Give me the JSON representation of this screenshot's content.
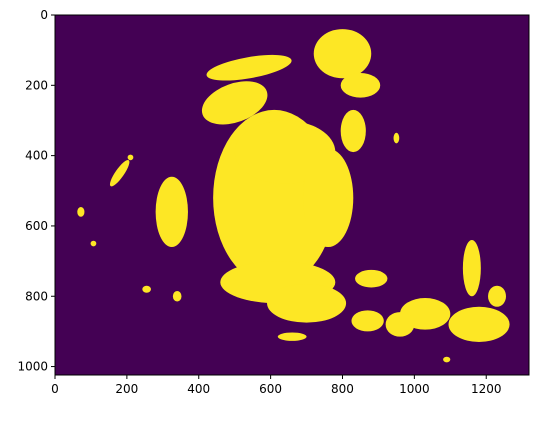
{
  "chart_data": {
    "type": "heatmap",
    "title": "",
    "xlabel": "",
    "ylabel": "",
    "xlim": [
      0,
      1319
    ],
    "ylim": [
      1024,
      0
    ],
    "xticks": [
      0,
      200,
      400,
      600,
      800,
      1000,
      1200
    ],
    "yticks": [
      0,
      200,
      400,
      600,
      800,
      1000
    ],
    "grid": false,
    "colormap": "viridis",
    "colors": {
      "background": "#440154",
      "foreground": "#fde725"
    },
    "mask_regions": [
      {
        "name": "face-mass",
        "cx": 610,
        "cy": 520,
        "rx": 170,
        "ry": 250,
        "rot": 0
      },
      {
        "name": "face-upper",
        "cx": 640,
        "cy": 390,
        "rx": 140,
        "ry": 90,
        "rot": 0
      },
      {
        "name": "face-right",
        "cx": 760,
        "cy": 520,
        "rx": 70,
        "ry": 140,
        "rot": 0
      },
      {
        "name": "jaw",
        "cx": 620,
        "cy": 760,
        "rx": 160,
        "ry": 60,
        "rot": 0
      },
      {
        "name": "jaw-lower",
        "cx": 700,
        "cy": 820,
        "rx": 110,
        "ry": 55,
        "rot": 0
      },
      {
        "name": "top-right-cluster",
        "cx": 800,
        "cy": 110,
        "rx": 80,
        "ry": 70,
        "rot": 0
      },
      {
        "name": "top-right-tail",
        "cx": 850,
        "cy": 200,
        "rx": 55,
        "ry": 35,
        "rot": 0
      },
      {
        "name": "left-oval",
        "cx": 325,
        "cy": 560,
        "rx": 45,
        "ry": 100,
        "rot": 0
      },
      {
        "name": "ear-right",
        "cx": 830,
        "cy": 330,
        "rx": 35,
        "ry": 60,
        "rot": 0
      },
      {
        "name": "hair-top",
        "cx": 500,
        "cy": 250,
        "rx": 95,
        "ry": 55,
        "rot": -20
      },
      {
        "name": "hair-top-band",
        "cx": 540,
        "cy": 150,
        "rx": 120,
        "ry": 30,
        "rot": -10
      },
      {
        "name": "bottom-right-a",
        "cx": 1180,
        "cy": 880,
        "rx": 85,
        "ry": 50,
        "rot": 0
      },
      {
        "name": "bottom-right-b",
        "cx": 1030,
        "cy": 850,
        "rx": 70,
        "ry": 45,
        "rot": 0
      },
      {
        "name": "bottom-right-c",
        "cx": 1160,
        "cy": 720,
        "rx": 25,
        "ry": 80,
        "rot": 0
      },
      {
        "name": "bottom-right-d",
        "cx": 960,
        "cy": 880,
        "rx": 40,
        "ry": 35,
        "rot": 0
      },
      {
        "name": "bottom-right-e",
        "cx": 1230,
        "cy": 800,
        "rx": 25,
        "ry": 30,
        "rot": 0
      },
      {
        "name": "left-diag",
        "cx": 180,
        "cy": 450,
        "rx": 12,
        "ry": 45,
        "rot": 35
      },
      {
        "name": "far-left-dot",
        "cx": 72,
        "cy": 560,
        "rx": 10,
        "ry": 14,
        "rot": 0
      },
      {
        "name": "far-left-dot-2",
        "cx": 107,
        "cy": 650,
        "rx": 8,
        "ry": 8,
        "rot": 0
      },
      {
        "name": "dot-255-780",
        "cx": 255,
        "cy": 780,
        "rx": 12,
        "ry": 10,
        "rot": 0
      },
      {
        "name": "dot-340-800",
        "cx": 340,
        "cy": 800,
        "rx": 12,
        "ry": 15,
        "rot": 0
      },
      {
        "name": "dot-210-405",
        "cx": 210,
        "cy": 405,
        "rx": 8,
        "ry": 8,
        "rot": 0
      },
      {
        "name": "dot-1090-980",
        "cx": 1090,
        "cy": 980,
        "rx": 10,
        "ry": 8,
        "rot": 0
      },
      {
        "name": "dot-950-360",
        "cx": 950,
        "cy": 350,
        "rx": 8,
        "ry": 15,
        "rot": 0
      },
      {
        "name": "bottom-scatter",
        "cx": 870,
        "cy": 870,
        "rx": 45,
        "ry": 30,
        "rot": 0
      },
      {
        "name": "bottom-center-dots",
        "cx": 660,
        "cy": 915,
        "rx": 40,
        "ry": 12,
        "rot": 0
      },
      {
        "name": "right-of-face",
        "cx": 880,
        "cy": 750,
        "rx": 45,
        "ry": 25,
        "rot": 0
      }
    ]
  }
}
